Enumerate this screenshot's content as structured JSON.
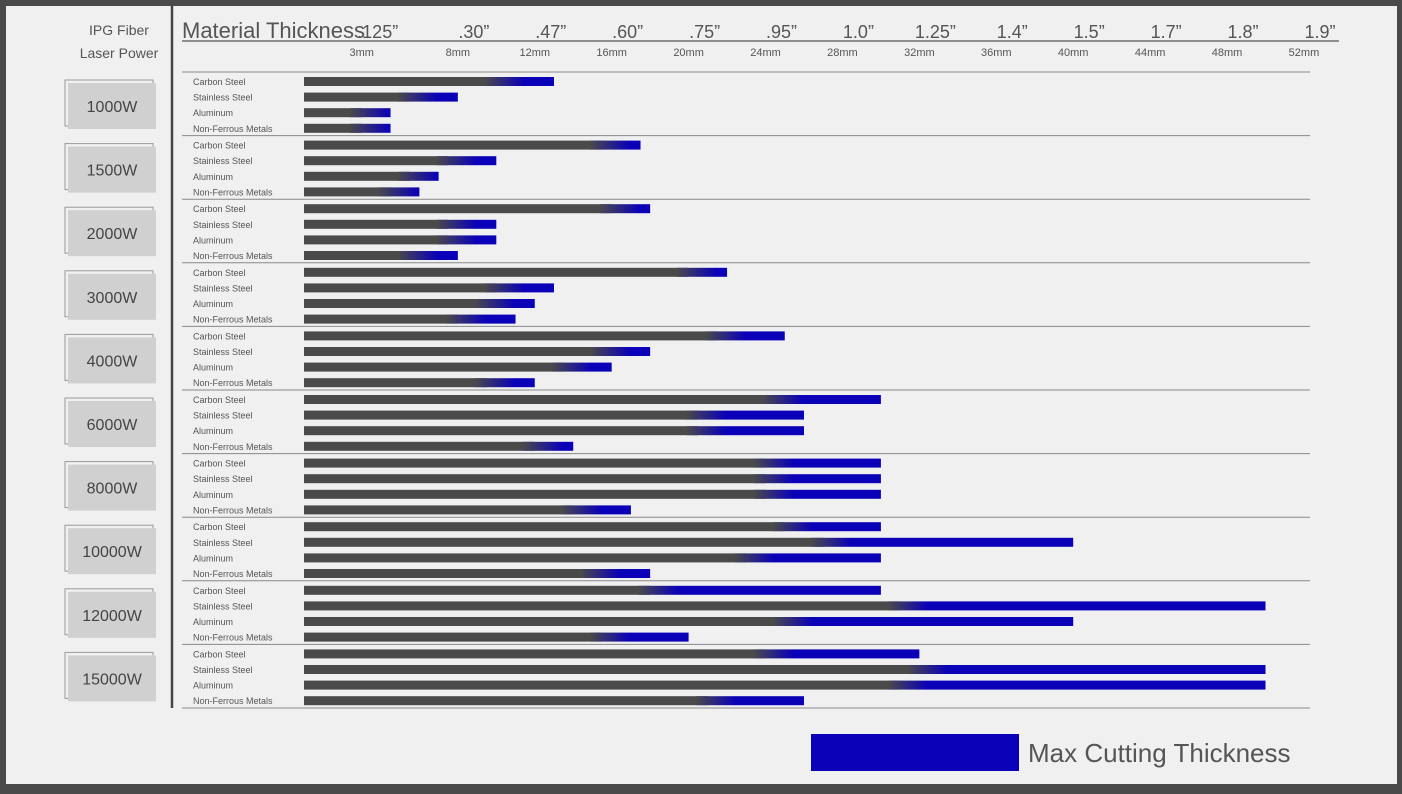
{
  "header": {
    "power_title_line1": "IPG Fiber",
    "power_title_line2": "Laser Power",
    "thickness_title": "Material Thickness"
  },
  "legend": {
    "label": "Max Cutting Thickness"
  },
  "colors": {
    "base_bar": "#4a4a4a",
    "max_bar": "#0a00b8"
  },
  "chart_data": {
    "type": "bar",
    "orientation": "horizontal",
    "unit": "mm",
    "x_ticks": [
      {
        "inch": ".125”",
        "mm": "3mm",
        "value": 3
      },
      {
        "inch": ".30”",
        "mm": "8mm",
        "value": 8
      },
      {
        "inch": ".47”",
        "mm": "12mm",
        "value": 12
      },
      {
        "inch": ".60”",
        "mm": "16mm",
        "value": 16
      },
      {
        "inch": ".75”",
        "mm": "20mm",
        "value": 20
      },
      {
        "inch": ".95”",
        "mm": "24mm",
        "value": 24
      },
      {
        "inch": "1.0”",
        "mm": "28mm",
        "value": 28
      },
      {
        "inch": "1.25”",
        "mm": "32mm",
        "value": 32
      },
      {
        "inch": "1.4”",
        "mm": "36mm",
        "value": 36
      },
      {
        "inch": "1.5”",
        "mm": "40mm",
        "value": 40
      },
      {
        "inch": "1.7”",
        "mm": "44mm",
        "value": 44
      },
      {
        "inch": "1.8”",
        "mm": "48mm",
        "value": 48
      },
      {
        "inch": "1.9”",
        "mm": "52mm",
        "value": 52
      }
    ],
    "materials": [
      "Carbon Steel",
      "Stainless Steel",
      "Aluminum",
      "Non-Ferrous Metals"
    ],
    "groups": [
      {
        "power": "1000W",
        "bars": [
          {
            "quality": 10,
            "max": 13
          },
          {
            "quality": 5.5,
            "max": 8
          },
          {
            "quality": 3,
            "max": 4.5
          },
          {
            "quality": 3,
            "max": 4.5
          }
        ]
      },
      {
        "power": "1500W",
        "bars": [
          {
            "quality": 15.5,
            "max": 17.5
          },
          {
            "quality": 7.5,
            "max": 10
          },
          {
            "quality": 5.5,
            "max": 7
          },
          {
            "quality": 4.5,
            "max": 6
          }
        ]
      },
      {
        "power": "2000W",
        "bars": [
          {
            "quality": 16,
            "max": 18
          },
          {
            "quality": 7.5,
            "max": 10
          },
          {
            "quality": 7.5,
            "max": 10
          },
          {
            "quality": 5.5,
            "max": 8
          }
        ]
      },
      {
        "power": "3000W",
        "bars": [
          {
            "quality": 20,
            "max": 22
          },
          {
            "quality": 10,
            "max": 13
          },
          {
            "quality": 9.5,
            "max": 12
          },
          {
            "quality": 8,
            "max": 11
          }
        ]
      },
      {
        "power": "4000W",
        "bars": [
          {
            "quality": 21.5,
            "max": 25
          },
          {
            "quality": 15.5,
            "max": 18
          },
          {
            "quality": 13.5,
            "max": 16
          },
          {
            "quality": 9.5,
            "max": 12
          }
        ]
      },
      {
        "power": "6000W",
        "bars": [
          {
            "quality": 24.5,
            "max": 30
          },
          {
            "quality": 20.5,
            "max": 26
          },
          {
            "quality": 20.5,
            "max": 26
          },
          {
            "quality": 12,
            "max": 14
          }
        ]
      },
      {
        "power": "8000W",
        "bars": [
          {
            "quality": 24,
            "max": 30
          },
          {
            "quality": 24,
            "max": 30
          },
          {
            "quality": 24,
            "max": 30
          },
          {
            "quality": 14,
            "max": 17
          }
        ]
      },
      {
        "power": "10000W",
        "bars": [
          {
            "quality": 25,
            "max": 30
          },
          {
            "quality": 27,
            "max": 40
          },
          {
            "quality": 23,
            "max": 30
          },
          {
            "quality": 15,
            "max": 18
          }
        ]
      },
      {
        "power": "12000W",
        "bars": [
          {
            "quality": 18,
            "max": 30
          },
          {
            "quality": 31,
            "max": 50
          },
          {
            "quality": 25,
            "max": 40
          },
          {
            "quality": 15.5,
            "max": 20
          }
        ]
      },
      {
        "power": "15000W",
        "bars": [
          {
            "quality": 24,
            "max": 32
          },
          {
            "quality": 32,
            "max": 50
          },
          {
            "quality": 31,
            "max": 50
          },
          {
            "quality": 21,
            "max": 26
          }
        ]
      }
    ]
  }
}
